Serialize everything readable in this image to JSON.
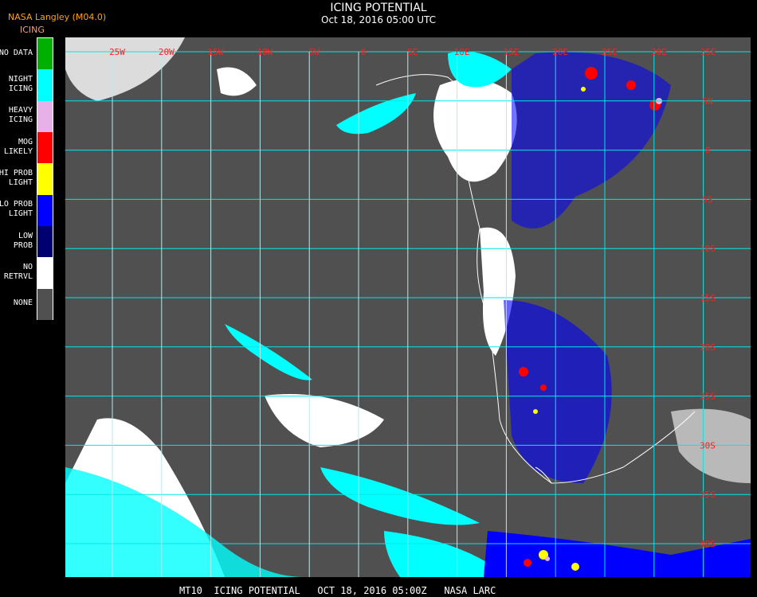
{
  "header": {
    "title": "ICING POTENTIAL",
    "subtitle": "Oct 18, 2016 05:00 UTC",
    "brand": "NASA Langley (M04.0)",
    "legend_title": "ICING"
  },
  "legend": [
    {
      "label": "NO DATA",
      "color": "#00b000"
    },
    {
      "label": "NIGHT\nICING",
      "color": "#00ffff"
    },
    {
      "label": "HEAVY\nICING",
      "color": "#e8b0e8"
    },
    {
      "label": "MOG\nLIKELY",
      "color": "#ff0000"
    },
    {
      "label": "HI PROB\nLIGHT",
      "color": "#ffff00"
    },
    {
      "label": "LO PROB\nLIGHT",
      "color": "#0000ff"
    },
    {
      "label": "LOW\nPROB",
      "color": "#000070"
    },
    {
      "label": "NO\nRETRVL",
      "color": "#ffffff"
    },
    {
      "label": "NONE",
      "color": "#505050"
    }
  ],
  "map": {
    "longitude_labels": [
      "25W",
      "20W",
      "15W",
      "10W",
      "5W",
      "0",
      "5E",
      "10E",
      "15E",
      "20E",
      "25E",
      "30E",
      "35E"
    ],
    "latitude_labels": [
      "5N",
      "0",
      "5S",
      "10S",
      "15S",
      "20S",
      "25S",
      "30S",
      "35S",
      "40S"
    ],
    "grid_color": "#00e8e8",
    "background_color": "#505050"
  },
  "footer": {
    "text": "MT10  ICING POTENTIAL   OCT 18, 2016 05:00Z   NASA LARC"
  }
}
